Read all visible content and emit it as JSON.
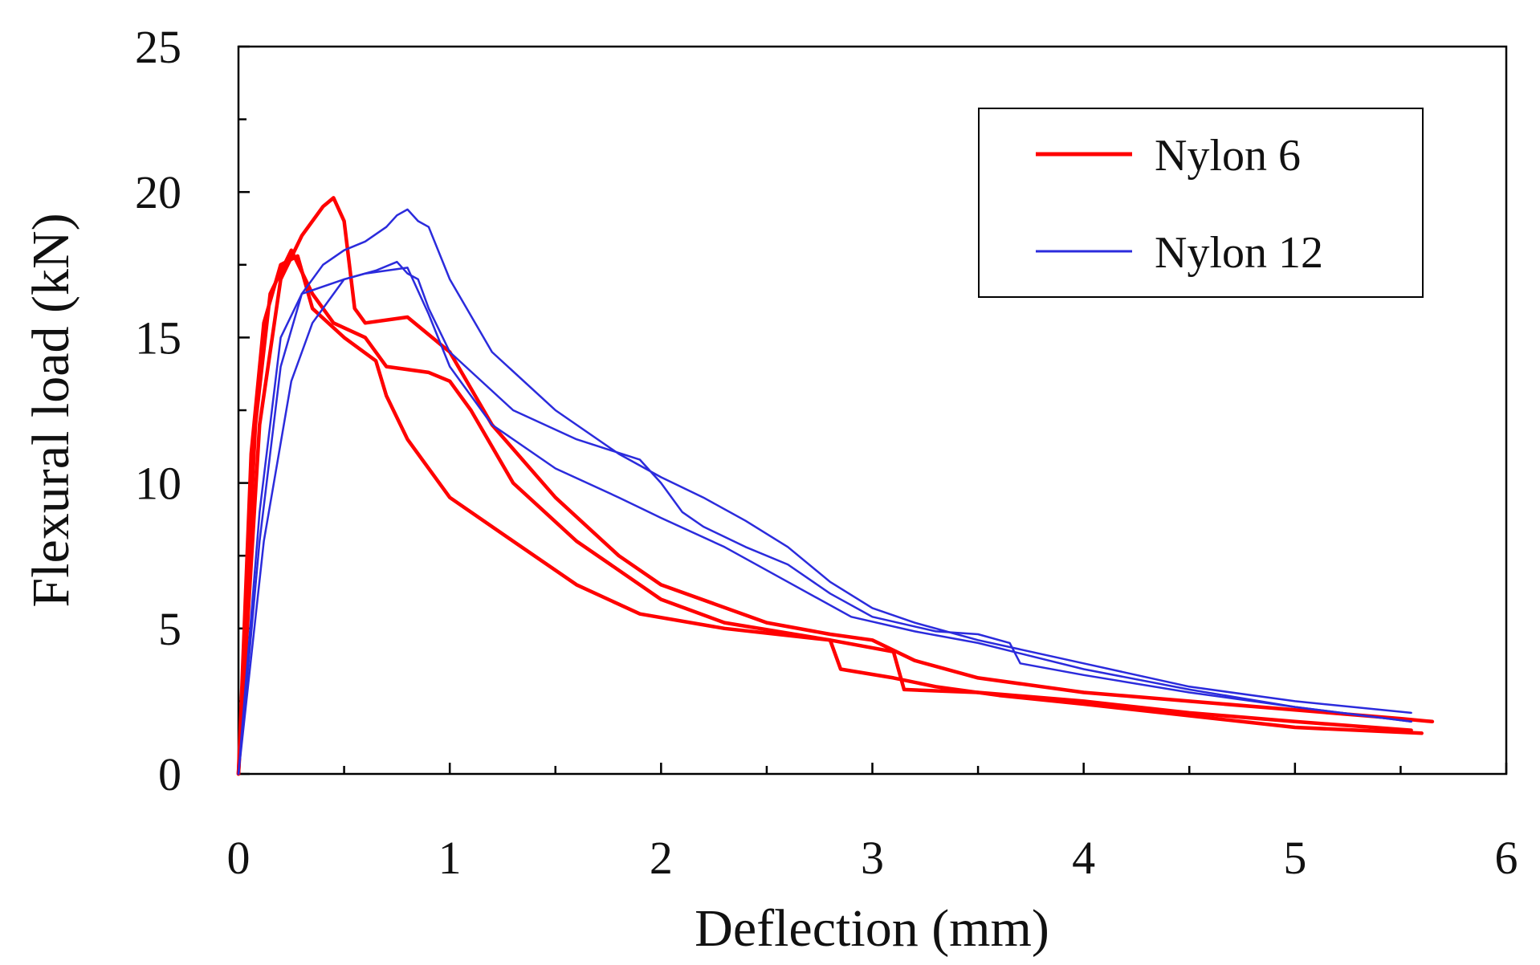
{
  "chart_data": {
    "type": "line",
    "title": "",
    "xlabel": "Deflection (mm)",
    "ylabel": "Flexural load (kN)",
    "xlim": [
      0,
      6
    ],
    "ylim": [
      0,
      25
    ],
    "xticks": [
      0,
      1,
      2,
      3,
      4,
      5,
      6
    ],
    "yticks": [
      0,
      5,
      10,
      15,
      20,
      25
    ],
    "grid": false,
    "legend_position": "top-right",
    "legend": [
      {
        "label": "Nylon 6",
        "color": "#ff0000"
      },
      {
        "label": "Nylon 12",
        "color": "#2b2bdc"
      }
    ],
    "series": [
      {
        "name": "Nylon 6",
        "group": "Nylon 6",
        "color": "#ff0000",
        "x": [
          0,
          0.1,
          0.2,
          0.3,
          0.4,
          0.45,
          0.5,
          0.55,
          0.6,
          0.8,
          1.0,
          1.2,
          1.5,
          1.8,
          2.0,
          2.5,
          2.8,
          3.0,
          3.2,
          3.5,
          4.0,
          4.5,
          5.0,
          5.5,
          5.65
        ],
        "y": [
          0,
          12,
          17,
          18.5,
          19.5,
          19.8,
          19.0,
          16.0,
          15.5,
          15.7,
          14.5,
          12.0,
          9.5,
          7.5,
          6.5,
          5.2,
          4.8,
          4.6,
          3.9,
          3.3,
          2.8,
          2.5,
          2.2,
          1.9,
          1.8
        ]
      },
      {
        "name": "Nylon 6",
        "group": "Nylon 6",
        "color": "#ff0000",
        "x": [
          0,
          0.08,
          0.15,
          0.25,
          0.35,
          0.45,
          0.6,
          0.7,
          0.9,
          1.0,
          1.1,
          1.3,
          1.6,
          1.8,
          2.0,
          2.3,
          2.8,
          2.85,
          3.1,
          3.3,
          3.6,
          4.0,
          4.5,
          5.0,
          5.6
        ],
        "y": [
          0,
          12,
          16.5,
          18.0,
          16.5,
          15.5,
          15.0,
          14.0,
          13.8,
          13.5,
          12.5,
          10.0,
          8.0,
          7.0,
          6.0,
          5.2,
          4.6,
          3.6,
          3.3,
          3.0,
          2.7,
          2.4,
          2.0,
          1.6,
          1.4
        ]
      },
      {
        "name": "Nylon 6",
        "group": "Nylon 6",
        "color": "#ff0000",
        "x": [
          0,
          0.06,
          0.12,
          0.2,
          0.28,
          0.35,
          0.5,
          0.65,
          0.7,
          0.8,
          1.0,
          1.3,
          1.6,
          1.9,
          2.3,
          2.8,
          3.1,
          3.15,
          3.5,
          4.0,
          4.5,
          5.0,
          5.55
        ],
        "y": [
          0,
          11,
          15.5,
          17.5,
          17.8,
          16.0,
          15.0,
          14.2,
          13.0,
          11.5,
          9.5,
          8.0,
          6.5,
          5.5,
          5.0,
          4.6,
          4.2,
          2.9,
          2.8,
          2.5,
          2.1,
          1.8,
          1.5
        ]
      },
      {
        "name": "Nylon 12",
        "group": "Nylon 12",
        "color": "#2b2bdc",
        "x": [
          0,
          0.1,
          0.2,
          0.3,
          0.4,
          0.5,
          0.6,
          0.7,
          0.75,
          0.8,
          0.85,
          0.9,
          1.0,
          1.2,
          1.5,
          1.8,
          2.0,
          2.2,
          2.4,
          2.6,
          2.8,
          3.0,
          3.2,
          3.5,
          4.0,
          4.5,
          5.0,
          5.55
        ],
        "y": [
          0,
          8,
          14,
          16.5,
          17.5,
          18.0,
          18.3,
          18.8,
          19.2,
          19.4,
          19.0,
          18.8,
          17.0,
          14.5,
          12.5,
          11.0,
          10.2,
          9.5,
          8.7,
          7.8,
          6.6,
          5.7,
          5.2,
          4.6,
          3.8,
          3.0,
          2.5,
          2.1
        ]
      },
      {
        "name": "Nylon 12",
        "group": "Nylon 12",
        "color": "#2b2bdc",
        "x": [
          0,
          0.12,
          0.25,
          0.35,
          0.5,
          0.65,
          0.75,
          0.8,
          0.85,
          0.9,
          1.0,
          1.3,
          1.6,
          1.9,
          2.0,
          2.1,
          2.2,
          2.4,
          2.6,
          2.8,
          3.0,
          3.3,
          3.5,
          3.65,
          3.7,
          4.0,
          4.5,
          5.0,
          5.55
        ],
        "y": [
          0,
          8,
          13.5,
          15.5,
          17.0,
          17.3,
          17.6,
          17.2,
          17.0,
          16.0,
          14.5,
          12.5,
          11.5,
          10.8,
          10.0,
          9.0,
          8.5,
          7.8,
          7.2,
          6.2,
          5.4,
          4.9,
          4.8,
          4.5,
          3.8,
          3.4,
          2.8,
          2.3,
          1.8
        ]
      },
      {
        "name": "Nylon 12",
        "group": "Nylon 12",
        "color": "#2b2bdc",
        "x": [
          0,
          0.1,
          0.2,
          0.3,
          0.5,
          0.6,
          0.8,
          0.9,
          1.0,
          1.2,
          1.5,
          1.8,
          2.0,
          2.3,
          2.6,
          2.9,
          3.2,
          3.5,
          4.0,
          4.5,
          5.0,
          5.55
        ],
        "y": [
          0,
          9,
          15.0,
          16.5,
          17.0,
          17.2,
          17.4,
          15.8,
          14.0,
          12.0,
          10.5,
          9.5,
          8.8,
          7.8,
          6.6,
          5.4,
          4.9,
          4.5,
          3.6,
          2.9,
          2.3,
          1.8
        ]
      }
    ]
  }
}
